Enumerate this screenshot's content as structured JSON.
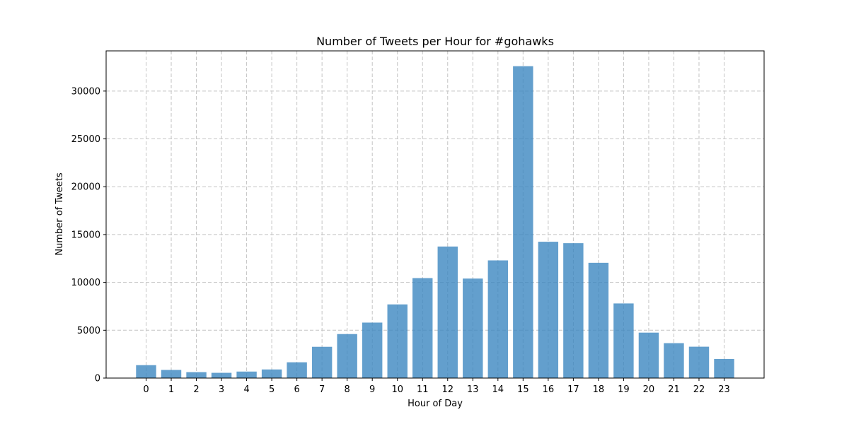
{
  "chart_data": {
    "type": "bar",
    "title": "Number of Tweets per Hour for #gohawks",
    "xlabel": "Hour of Day",
    "ylabel": "Number of Tweets",
    "categories": [
      "0",
      "1",
      "2",
      "3",
      "4",
      "5",
      "6",
      "7",
      "8",
      "9",
      "10",
      "11",
      "12",
      "13",
      "14",
      "15",
      "16",
      "17",
      "18",
      "19",
      "20",
      "21",
      "22",
      "23"
    ],
    "values": [
      1350,
      850,
      620,
      550,
      680,
      900,
      1650,
      3270,
      4600,
      5800,
      7700,
      10450,
      13750,
      10400,
      12300,
      32600,
      14250,
      14100,
      12050,
      7800,
      4750,
      3650,
      3280,
      2000
    ],
    "yticks": [
      0,
      5000,
      10000,
      15000,
      20000,
      25000,
      30000
    ],
    "ylim": [
      0,
      34200
    ],
    "grid": true,
    "bar_color": "#3c87c0",
    "bar_opacity": 0.8
  }
}
